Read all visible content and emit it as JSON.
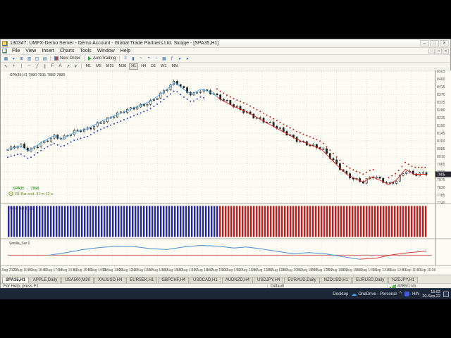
{
  "window": {
    "title": "130347: UMFX-Demo Server - Demo Account - Global Trade Partners Ltd. Skopje - [SPA35,H1]",
    "controls": {
      "minimize": "─",
      "maximize": "□",
      "close": "✕"
    }
  },
  "menu": {
    "items": [
      "File",
      "View",
      "Insert",
      "Charts",
      "Tools",
      "Window",
      "Help"
    ]
  },
  "toolbar": {
    "group1": [
      {
        "name": "new-chart-icon",
        "glyph": "▦"
      },
      {
        "name": "profiles-dropdown-icon",
        "glyph": "▾"
      },
      {
        "name": "market-watch-icon",
        "glyph": "⊞"
      },
      {
        "name": "data-window-icon",
        "glyph": "▥"
      },
      {
        "name": "navigator-icon",
        "glyph": "◫"
      },
      {
        "name": "terminal-icon",
        "glyph": "▤"
      }
    ],
    "new_order_label": "New Order",
    "autotrading_label": "AutoTrading",
    "group2": [
      {
        "name": "chart-bars-icon",
        "glyph": "≡"
      },
      {
        "name": "chart-candles-icon",
        "glyph": "▮"
      },
      {
        "name": "chart-line-icon",
        "glyph": "~"
      },
      {
        "name": "zoom-in-icon",
        "glyph": "+"
      },
      {
        "name": "zoom-out-icon",
        "glyph": "−"
      },
      {
        "name": "tile-windows-icon",
        "glyph": "▦"
      },
      {
        "name": "indicators-icon",
        "glyph": "ƒ"
      },
      {
        "name": "periods-dropdown-icon",
        "glyph": "▾"
      },
      {
        "name": "templates-dropdown-icon",
        "glyph": "▾"
      }
    ],
    "tools": [
      {
        "name": "cursor-tool-icon",
        "glyph": "↖"
      },
      {
        "name": "crosshair-tool-icon",
        "glyph": "+"
      },
      {
        "name": "vertical-line-tool-icon",
        "glyph": "|"
      },
      {
        "name": "horizontal-line-tool-icon",
        "glyph": "─"
      },
      {
        "name": "trendline-tool-icon",
        "glyph": "╱"
      },
      {
        "name": "channel-tool-icon",
        "glyph": "∥"
      },
      {
        "name": "fibonacci-tool-icon",
        "glyph": "F"
      },
      {
        "name": "text-tool-icon",
        "glyph": "A"
      },
      {
        "name": "arrow-tool-icon",
        "glyph": "↗"
      },
      {
        "name": "shapes-dropdown-icon",
        "glyph": "▾"
      }
    ],
    "timeframes": [
      "M1",
      "M5",
      "M15",
      "M30",
      "H1",
      "H4",
      "D1",
      "W1",
      "MN"
    ],
    "active_timeframe": "H1"
  },
  "chart_data": {
    "type": "candlestick",
    "symbol": "SPA35",
    "timeframe": "H1",
    "header": "SPA35,H1  7890 7911 7882 7899",
    "ohlc": {
      "open": 7890,
      "high": 7911,
      "low": 7882,
      "close": 7899
    },
    "current_price": "7905",
    "info_line1": "SPA35      7898",
    "info_line2": "H1 Bar end: 37 m 12 s",
    "indicator1_label": "Trend bars(1) 1",
    "indicator2_label": "Vanilla_Sar 0",
    "price_axis": {
      "max": 8510,
      "min": 7735,
      "tick_step": 45,
      "labels": [
        "8505",
        "8460",
        "8415",
        "8370",
        "8325",
        "8280",
        "8235",
        "8190",
        "8145",
        "8100",
        "8055",
        "8010",
        "7965",
        "7920",
        "7875",
        "7830",
        "7785",
        "7740"
      ]
    },
    "time_axis": {
      "labels": [
        "2 Aug 2022",
        "3 Aug 10:00",
        "3 Aug 18:00",
        "4 Aug 17:00",
        "5 Aug 16:00",
        "8 Aug 15:00",
        "9 Aug 14:00",
        "10 Aug 13:00",
        "11 Aug 12:00",
        "12 Aug 11:00",
        "15 Aug 10:00",
        "15 Aug 18:00",
        "16 Aug 17:00",
        "17 Aug 16:00",
        "18 Aug 15:00",
        "19 Aug 14:00",
        "22 Aug 13:00",
        "23 Aug 12:00",
        "24 Aug 11:00",
        "25 Aug 10:00",
        "25 Aug 18:00",
        "26 Aug 17:00",
        "29 Aug 16:00",
        "30 Aug 15:00",
        "31 Aug 14:00",
        "1 Sep 13:00",
        "2 Sep 12:00",
        "5 Sep 11:00",
        "6 Sep 10:00"
      ]
    },
    "price_points": [
      [
        0.0,
        8050
      ],
      [
        0.03,
        8070
      ],
      [
        0.05,
        8040
      ],
      [
        0.08,
        8090
      ],
      [
        0.11,
        8130
      ],
      [
        0.13,
        8110
      ],
      [
        0.16,
        8150
      ],
      [
        0.19,
        8170
      ],
      [
        0.22,
        8210
      ],
      [
        0.25,
        8240
      ],
      [
        0.28,
        8270
      ],
      [
        0.31,
        8300
      ],
      [
        0.34,
        8330
      ],
      [
        0.37,
        8380
      ],
      [
        0.4,
        8440
      ],
      [
        0.42,
        8400
      ],
      [
        0.44,
        8370
      ],
      [
        0.46,
        8400
      ],
      [
        0.48,
        8390
      ],
      [
        0.51,
        8340
      ],
      [
        0.54,
        8300
      ],
      [
        0.57,
        8270
      ],
      [
        0.6,
        8230
      ],
      [
        0.63,
        8190
      ],
      [
        0.66,
        8150
      ],
      [
        0.69,
        8110
      ],
      [
        0.72,
        8080
      ],
      [
        0.75,
        8050
      ],
      [
        0.77,
        8000
      ],
      [
        0.79,
        7950
      ],
      [
        0.81,
        7905
      ],
      [
        0.83,
        7880
      ],
      [
        0.85,
        7860
      ],
      [
        0.87,
        7890
      ],
      [
        0.89,
        7870
      ],
      [
        0.91,
        7845
      ],
      [
        0.93,
        7875
      ],
      [
        0.95,
        7935
      ],
      [
        0.97,
        7905
      ],
      [
        1.0,
        7905
      ]
    ],
    "sar_segments": [
      {
        "color": "#2a3bd0",
        "from": 0.0,
        "to": 0.47,
        "offset": -45
      },
      {
        "color": "#e01616",
        "from": 0.5,
        "to": 0.88,
        "offset": 45
      },
      {
        "color": "#e01616",
        "from": 0.91,
        "to": 1.0,
        "offset": 40
      }
    ],
    "ma_lines": {
      "cyan_to": 0.5,
      "red_from": 0.5,
      "cyan_color": "#46a6e8",
      "red_color": "#e02020"
    },
    "histogram": {
      "blue_until": 0.505,
      "blue": "#2222c8",
      "red": "#de1212"
    },
    "oscillator": {
      "zero_line_y": 0.62,
      "red_from": 0.84,
      "blue": "#4a8fd0",
      "red": "#d04040",
      "zero_color": "#c05050",
      "points": [
        [
          0.1,
          0.62
        ],
        [
          0.14,
          0.52
        ],
        [
          0.18,
          0.4
        ],
        [
          0.22,
          0.32
        ],
        [
          0.26,
          0.27
        ],
        [
          0.3,
          0.28
        ],
        [
          0.34,
          0.36
        ],
        [
          0.38,
          0.4
        ],
        [
          0.42,
          0.3
        ],
        [
          0.46,
          0.24
        ],
        [
          0.5,
          0.26
        ],
        [
          0.54,
          0.34
        ],
        [
          0.57,
          0.3
        ],
        [
          0.6,
          0.36
        ],
        [
          0.64,
          0.46
        ],
        [
          0.68,
          0.56
        ],
        [
          0.72,
          0.52
        ],
        [
          0.76,
          0.57
        ],
        [
          0.8,
          0.68
        ],
        [
          0.84,
          0.78
        ],
        [
          0.88,
          0.74
        ],
        [
          0.92,
          0.6
        ],
        [
          0.96,
          0.52
        ],
        [
          1.0,
          0.46
        ]
      ]
    }
  },
  "tabs": {
    "items": [
      "SPA35,H1",
      "APPLE,Daily",
      "USA500,M30",
      "XAUUSD,H4",
      "EURSEK,H1",
      "GBPCHF,H4",
      "USDCAD,H1",
      "AUDNZD,H4",
      "USDJPY,H4",
      "EURAUD,Daily",
      "NZDUSD,H1",
      "EURUSD,Daily",
      "NZDJPY,H1"
    ],
    "active": "SPA35,H1"
  },
  "statusbar": {
    "help_text": "For Help, press F1",
    "profile": "Default",
    "connection": "4785/1 kb"
  },
  "taskbar": {
    "desktop_label": "Desktop",
    "onedrive_label": "OneDrive - Personal",
    "tray_chevron": "^",
    "language": "HIN",
    "time": "15:02",
    "date": "20-Sep-22"
  }
}
